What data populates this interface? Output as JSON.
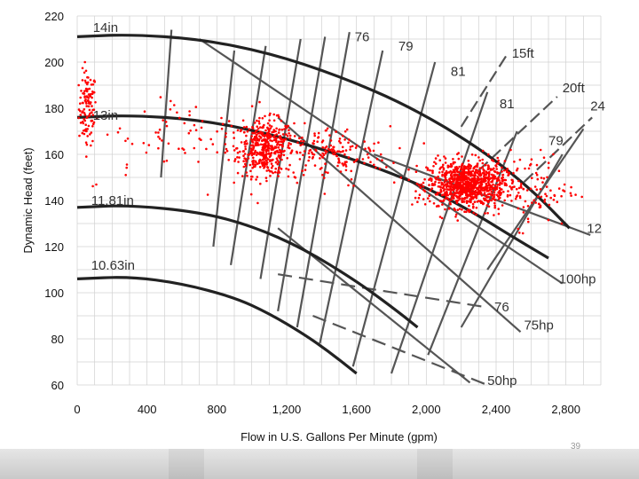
{
  "footer": {
    "page_number": "39"
  },
  "chart_data": {
    "type": "scatter",
    "title": "",
    "xlabel": "Flow in U.S. Gallons Per Minute (gpm)",
    "ylabel": "Dynamic Head (feet)",
    "xlim": [
      0,
      3000
    ],
    "ylim": [
      60,
      220
    ],
    "x_ticks": [
      0,
      400,
      800,
      1200,
      1600,
      2000,
      2400,
      2800
    ],
    "x_tick_labels": [
      "0",
      "400",
      "800",
      "1,200",
      "1,600",
      "2,000",
      "2,400",
      "2,800"
    ],
    "y_ticks": [
      60,
      80,
      100,
      120,
      140,
      160,
      180,
      200,
      220
    ],
    "y_tick_labels": [
      "60",
      "80",
      "100",
      "120",
      "140",
      "160",
      "180",
      "200",
      "220"
    ],
    "grid": true,
    "impeller_curves": [
      {
        "label": "14in",
        "points": [
          [
            0,
            211
          ],
          [
            300,
            212
          ],
          [
            700,
            210
          ],
          [
            1100,
            204
          ],
          [
            1500,
            194
          ],
          [
            1900,
            181
          ],
          [
            2300,
            163
          ],
          [
            2600,
            145
          ],
          [
            2820,
            128
          ]
        ]
      },
      {
        "label": "13in",
        "points": [
          [
            0,
            176
          ],
          [
            300,
            177
          ],
          [
            700,
            175
          ],
          [
            1100,
            169
          ],
          [
            1500,
            160
          ],
          [
            1900,
            149
          ],
          [
            2200,
            138
          ],
          [
            2500,
            124
          ],
          [
            2700,
            115
          ]
        ]
      },
      {
        "label": "11.81in",
        "points": [
          [
            0,
            137
          ],
          [
            300,
            138
          ],
          [
            700,
            135
          ],
          [
            1000,
            129
          ],
          [
            1300,
            119
          ],
          [
            1600,
            105
          ],
          [
            1800,
            94
          ],
          [
            1950,
            85
          ]
        ]
      },
      {
        "label": "10.63in",
        "points": [
          [
            0,
            106
          ],
          [
            300,
            107
          ],
          [
            600,
            104
          ],
          [
            900,
            98
          ],
          [
            1100,
            91
          ],
          [
            1300,
            82
          ],
          [
            1450,
            74
          ],
          [
            1600,
            65
          ]
        ]
      }
    ],
    "curve_labels": [
      {
        "text": "14in",
        "x": 90,
        "y": 213
      },
      {
        "text": "13in",
        "x": 90,
        "y": 175
      },
      {
        "text": "11.81in",
        "x": 80,
        "y": 138
      },
      {
        "text": "10.63in",
        "x": 80,
        "y": 110
      },
      {
        "text": "76",
        "x": 1590,
        "y": 209
      },
      {
        "text": "79",
        "x": 1840,
        "y": 205
      },
      {
        "text": "81",
        "x": 2140,
        "y": 194
      },
      {
        "text": "81",
        "x": 2420,
        "y": 180
      },
      {
        "text": "79",
        "x": 2700,
        "y": 164
      },
      {
        "text": "15ft",
        "x": 2490,
        "y": 202
      },
      {
        "text": "20ft",
        "x": 2780,
        "y": 187
      },
      {
        "text": "24",
        "x": 2940,
        "y": 179
      },
      {
        "text": "76",
        "x": 2390,
        "y": 92
      },
      {
        "text": "100hp",
        "x": 2760,
        "y": 104
      },
      {
        "text": "75hp",
        "x": 2560,
        "y": 84
      },
      {
        "text": "50hp",
        "x": 2350,
        "y": 60
      },
      {
        "text": "12",
        "x": 2920,
        "y": 126
      }
    ],
    "efficiency_lines": [
      {
        "x1": 480,
        "y1": 150,
        "x2": 540,
        "y2": 214
      },
      {
        "x1": 780,
        "y1": 120,
        "x2": 900,
        "y2": 205
      },
      {
        "x1": 880,
        "y1": 112,
        "x2": 1080,
        "y2": 207
      },
      {
        "x1": 1050,
        "y1": 106,
        "x2": 1280,
        "y2": 210
      },
      {
        "x1": 1150,
        "y1": 92,
        "x2": 1420,
        "y2": 211
      },
      {
        "x1": 1260,
        "y1": 85,
        "x2": 1560,
        "y2": 213
      },
      {
        "x1": 1390,
        "y1": 78,
        "x2": 1750,
        "y2": 205
      },
      {
        "x1": 1580,
        "y1": 68,
        "x2": 2050,
        "y2": 200
      },
      {
        "x1": 1800,
        "y1": 65,
        "x2": 2350,
        "y2": 187
      },
      {
        "x1": 2010,
        "y1": 73,
        "x2": 2520,
        "y2": 170
      },
      {
        "x1": 2200,
        "y1": 85,
        "x2": 2780,
        "y2": 160
      },
      {
        "x1": 2350,
        "y1": 110,
        "x2": 2900,
        "y2": 171
      }
    ],
    "npsh_lines": [
      {
        "x1": 2200,
        "y1": 172,
        "x2": 2460,
        "y2": 203
      },
      {
        "x1": 2300,
        "y1": 153,
        "x2": 2750,
        "y2": 185
      },
      {
        "x1": 2560,
        "y1": 148,
        "x2": 2950,
        "y2": 176
      }
    ],
    "power_lines": [
      {
        "x1": 700,
        "y1": 210,
        "x2": 2780,
        "y2": 104
      },
      {
        "x1": 1150,
        "y1": 176,
        "x2": 2540,
        "y2": 83
      },
      {
        "x1": 1150,
        "y1": 128,
        "x2": 2250,
        "y2": 61
      },
      {
        "x1": 1700,
        "y1": 160,
        "x2": 2940,
        "y2": 125
      }
    ],
    "dashed_lines": [
      {
        "x1": 1150,
        "y1": 108,
        "x2": 2320,
        "y2": 94
      },
      {
        "x1": 1350,
        "y1": 90,
        "x2": 2350,
        "y2": 60
      }
    ],
    "scatter_clusters": [
      {
        "name": "",
        "cx": 60,
        "cy": 180,
        "sx": 25,
        "sy": 8,
        "n": 110,
        "color": "#ff0000"
      },
      {
        "name": "",
        "cx": 1080,
        "cy": 163,
        "sx": 80,
        "sy": 6,
        "n": 420,
        "color": "#ff0000"
      },
      {
        "name": "",
        "cx": 1450,
        "cy": 160,
        "sx": 170,
        "sy": 6,
        "n": 160,
        "color": "#ff0000"
      },
      {
        "name": "",
        "cx": 2230,
        "cy": 147,
        "sx": 110,
        "sy": 5,
        "n": 900,
        "color": "#ff0000"
      },
      {
        "name": "",
        "cx": 2600,
        "cy": 145,
        "sx": 130,
        "sy": 8,
        "n": 110,
        "color": "#ff0000"
      },
      {
        "name": "",
        "cx": 650,
        "cy": 168,
        "sx": 330,
        "sy": 10,
        "n": 90,
        "color": "#ff0000"
      }
    ],
    "colors": {
      "marker": "#ff0000",
      "curve": "#222222",
      "line": "#555555",
      "grid": "#d0d0d0",
      "footer": "#c8c8c8"
    }
  }
}
